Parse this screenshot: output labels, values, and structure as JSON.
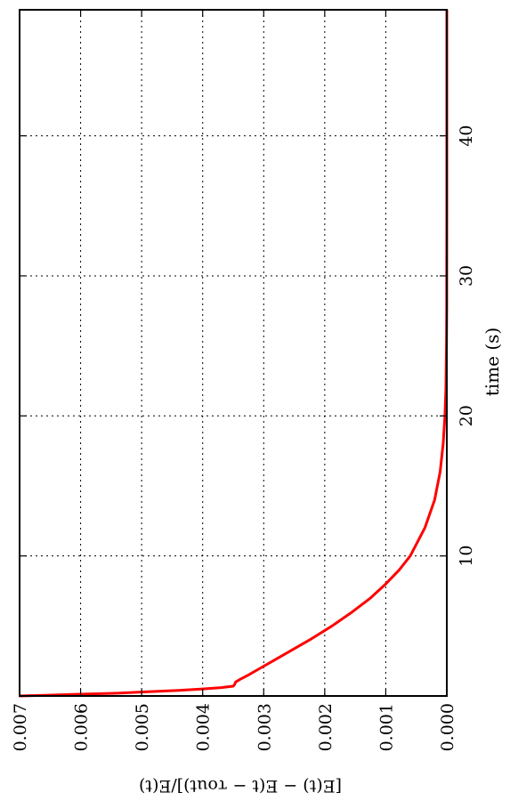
{
  "chart_data": {
    "type": "line",
    "orientation": "rotated-90-clockwise",
    "xlabel": "time (s)",
    "ylabel": "[E(t) − E(t − τout)]/E(t)",
    "xlim": [
      0,
      49
    ],
    "ylim": [
      0,
      0.007
    ],
    "x_ticks": [
      10,
      20,
      30,
      40
    ],
    "x_tick_labels": [
      "10",
      "20",
      "30",
      "40"
    ],
    "y_ticks": [
      0,
      0.001,
      0.002,
      0.003,
      0.004,
      0.005,
      0.006,
      0.007
    ],
    "y_tick_labels": [
      "0.000",
      "0.001",
      "0.002",
      "0.003",
      "0.004",
      "0.005",
      "0.006",
      "0.007"
    ],
    "grid": true,
    "series": [
      {
        "color": "#ff0000",
        "x": [
          0.0,
          0.05,
          0.1,
          0.15,
          0.2,
          0.3,
          0.4,
          0.5,
          0.6,
          0.7,
          0.8,
          0.9,
          1.0,
          1.2,
          1.5,
          2,
          2.5,
          3,
          4,
          5,
          6,
          7,
          8,
          9,
          10,
          12,
          14,
          16,
          18,
          20,
          22,
          25,
          28,
          30,
          35,
          40,
          45,
          49
        ],
        "y": [
          0.007,
          0.0066,
          0.0062,
          0.0058,
          0.0054,
          0.0049,
          0.0044,
          0.004,
          0.0037,
          0.0035,
          0.00348,
          0.00347,
          0.00346,
          0.00338,
          0.00325,
          0.00305,
          0.00285,
          0.00265,
          0.00225,
          0.00188,
          0.00155,
          0.00125,
          0.001,
          0.00078,
          0.0006,
          0.00036,
          0.0002,
          0.00011,
          6e-05,
          3e-05,
          1.5e-05,
          6e-06,
          2e-06,
          1e-06,
          3e-07,
          1e-07,
          5e-08,
          0.0
        ]
      }
    ]
  }
}
